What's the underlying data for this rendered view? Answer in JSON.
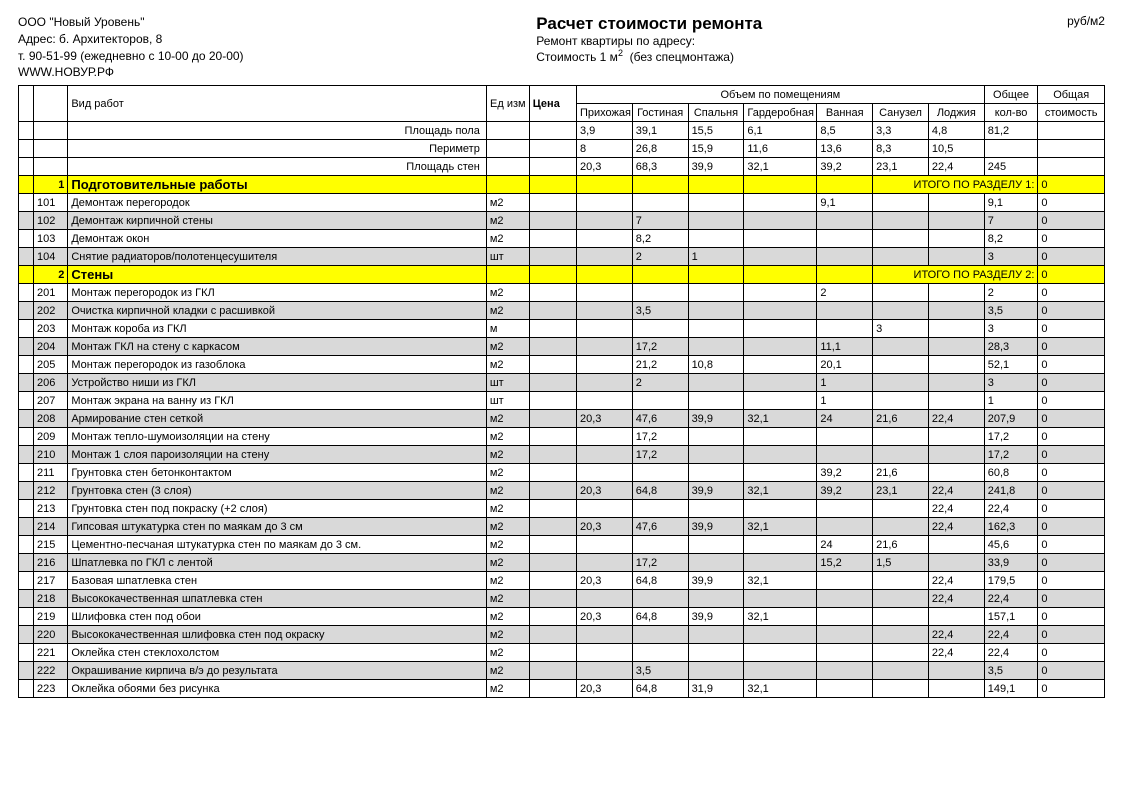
{
  "company": {
    "name": "ООО \"Новый Уровень\"",
    "address": "Адрес: б. Архитекторов, 8",
    "phone": "т. 90-51-99 (ежедневно с 10-00 до 20-00)",
    "site": "WWW.НОВУР.РФ"
  },
  "title": {
    "main": "Расчет стоимости ремонта",
    "sub": "Ремонт квартиры по адресу:",
    "cost_prefix": "Стоимость 1 м",
    "cost_suffix": "(без спецмонтажа)",
    "unit": "руб/м2"
  },
  "headers": {
    "work_type": "Вид работ",
    "unit": "Ед изм",
    "price": "Цена",
    "vol_head": "Объем по помещениям",
    "total_qty": "Общее кол-во",
    "total_cost": "Общая стоимость",
    "rooms": [
      "Прихожая",
      "Гостиная",
      "Спальня",
      "Гардеробная",
      "Ванная",
      "Санузел",
      "Лоджия"
    ]
  },
  "pre_rows": [
    {
      "label": "Площадь пола",
      "vals": [
        "3,9",
        "39,1",
        "15,5",
        "6,1",
        "8,5",
        "3,3",
        "4,8"
      ],
      "total": "81,2"
    },
    {
      "label": "Периметр",
      "vals": [
        "8",
        "26,8",
        "15,9",
        "11,6",
        "13,6",
        "8,3",
        "10,5"
      ],
      "total": ""
    },
    {
      "label": "Площадь стен",
      "vals": [
        "20,3",
        "68,3",
        "39,9",
        "32,1",
        "39,2",
        "23,1",
        "22,4"
      ],
      "total": "245"
    }
  ],
  "sections": [
    {
      "num": "1",
      "title": "Подготовительные работы",
      "sum_label": "ИТОГО ПО РАЗДЕЛУ 1:",
      "sum": "0"
    },
    {
      "num": "2",
      "title": "Стены",
      "sum_label": "ИТОГО ПО РАЗДЕЛУ 2:",
      "sum": "0"
    }
  ],
  "rows1": [
    {
      "n": "101",
      "name": "Демонтаж перегородок",
      "u": "м2",
      "v": [
        "",
        "",
        "",
        "",
        "9,1",
        "",
        ""
      ],
      "t": "9,1",
      "c": "0",
      "g": false
    },
    {
      "n": "102",
      "name": "Демонтаж кирпичной стены",
      "u": "м2",
      "v": [
        "",
        "7",
        "",
        "",
        "",
        "",
        ""
      ],
      "t": "7",
      "c": "0",
      "g": true
    },
    {
      "n": "103",
      "name": "Демонтаж окон",
      "u": "м2",
      "v": [
        "",
        "8,2",
        "",
        "",
        "",
        "",
        ""
      ],
      "t": "8,2",
      "c": "0",
      "g": false
    },
    {
      "n": "104",
      "name": "Снятие радиаторов/полотенцесушителя",
      "u": "шт",
      "v": [
        "",
        "2",
        "1",
        "",
        "",
        "",
        ""
      ],
      "t": "3",
      "c": "0",
      "g": true
    }
  ],
  "rows2": [
    {
      "n": "201",
      "name": "Монтаж перегородок из ГКЛ",
      "u": "м2",
      "v": [
        "",
        "",
        "",
        "",
        "2",
        "",
        ""
      ],
      "t": "2",
      "c": "0",
      "g": false
    },
    {
      "n": "202",
      "name": "Очистка кирпичной кладки с расшивкой",
      "u": "м2",
      "v": [
        "",
        "3,5",
        "",
        "",
        "",
        "",
        ""
      ],
      "t": "3,5",
      "c": "0",
      "g": true
    },
    {
      "n": "203",
      "name": "Монтаж короба из ГКЛ",
      "u": "м",
      "v": [
        "",
        "",
        "",
        "",
        "",
        "3",
        ""
      ],
      "t": "3",
      "c": "0",
      "g": false
    },
    {
      "n": "204",
      "name": "Монтаж ГКЛ на стену с каркасом",
      "u": "м2",
      "v": [
        "",
        "17,2",
        "",
        "",
        "11,1",
        "",
        ""
      ],
      "t": "28,3",
      "c": "0",
      "g": true
    },
    {
      "n": "205",
      "name": "Монтаж перегородок из газоблока",
      "u": "м2",
      "v": [
        "",
        "21,2",
        "10,8",
        "",
        "20,1",
        "",
        ""
      ],
      "t": "52,1",
      "c": "0",
      "g": false
    },
    {
      "n": "206",
      "name": "Устройство ниши из ГКЛ",
      "u": "шт",
      "v": [
        "",
        "2",
        "",
        "",
        "1",
        "",
        ""
      ],
      "t": "3",
      "c": "0",
      "g": true
    },
    {
      "n": "207",
      "name": "Монтаж экрана на ванну из ГКЛ",
      "u": "шт",
      "v": [
        "",
        "",
        "",
        "",
        "1",
        "",
        ""
      ],
      "t": "1",
      "c": "0",
      "g": false
    },
    {
      "n": "208",
      "name": "Армирование стен сеткой",
      "u": "м2",
      "v": [
        "20,3",
        "47,6",
        "39,9",
        "32,1",
        "24",
        "21,6",
        "22,4"
      ],
      "t": "207,9",
      "c": "0",
      "g": true
    },
    {
      "n": "209",
      "name": "Монтаж тепло-шумоизоляции на стену",
      "u": "м2",
      "v": [
        "",
        "17,2",
        "",
        "",
        "",
        "",
        ""
      ],
      "t": "17,2",
      "c": "0",
      "g": false
    },
    {
      "n": "210",
      "name": "Монтаж 1 слоя пароизоляции на стену",
      "u": "м2",
      "v": [
        "",
        "17,2",
        "",
        "",
        "",
        "",
        ""
      ],
      "t": "17,2",
      "c": "0",
      "g": true
    },
    {
      "n": "211",
      "name": "Грунтовка стен бетонконтактом",
      "u": "м2",
      "v": [
        "",
        "",
        "",
        "",
        "39,2",
        "21,6",
        ""
      ],
      "t": "60,8",
      "c": "0",
      "g": false
    },
    {
      "n": "212",
      "name": "Грунтовка стен (3 слоя)",
      "u": "м2",
      "v": [
        "20,3",
        "64,8",
        "39,9",
        "32,1",
        "39,2",
        "23,1",
        "22,4"
      ],
      "t": "241,8",
      "c": "0",
      "g": true
    },
    {
      "n": "213",
      "name": "Грунтовка стен под покраску (+2 слоя)",
      "u": "м2",
      "v": [
        "",
        "",
        "",
        "",
        "",
        "",
        "22,4"
      ],
      "t": "22,4",
      "c": "0",
      "g": false
    },
    {
      "n": "214",
      "name": "Гипсовая штукатурка стен по маякам до 3 см",
      "u": "м2",
      "v": [
        "20,3",
        "47,6",
        "39,9",
        "32,1",
        "",
        "",
        "22,4"
      ],
      "t": "162,3",
      "c": "0",
      "g": true
    },
    {
      "n": "215",
      "name": "Цементно-песчаная штукатурка стен по маякам до 3 см.",
      "u": "м2",
      "v": [
        "",
        "",
        "",
        "",
        "24",
        "21,6",
        ""
      ],
      "t": "45,6",
      "c": "0",
      "g": false
    },
    {
      "n": "216",
      "name": "Шпатлевка по ГКЛ с лентой",
      "u": "м2",
      "v": [
        "",
        "17,2",
        "",
        "",
        "15,2",
        "1,5",
        ""
      ],
      "t": "33,9",
      "c": "0",
      "g": true
    },
    {
      "n": "217",
      "name": "Базовая шпатлевка стен",
      "u": "м2",
      "v": [
        "20,3",
        "64,8",
        "39,9",
        "32,1",
        "",
        "",
        "22,4"
      ],
      "t": "179,5",
      "c": "0",
      "g": false
    },
    {
      "n": "218",
      "name": "Высококачественная шпатлевка стен",
      "u": "м2",
      "v": [
        "",
        "",
        "",
        "",
        "",
        "",
        "22,4"
      ],
      "t": "22,4",
      "c": "0",
      "g": true
    },
    {
      "n": "219",
      "name": "Шлифовка стен под обои",
      "u": "м2",
      "v": [
        "20,3",
        "64,8",
        "39,9",
        "32,1",
        "",
        "",
        ""
      ],
      "t": "157,1",
      "c": "0",
      "g": false
    },
    {
      "n": "220",
      "name": "Высококачественная шлифовка стен под окраску",
      "u": "м2",
      "v": [
        "",
        "",
        "",
        "",
        "",
        "",
        "22,4"
      ],
      "t": "22,4",
      "c": "0",
      "g": true
    },
    {
      "n": "221",
      "name": "Оклейка стен стеклохолстом",
      "u": "м2",
      "v": [
        "",
        "",
        "",
        "",
        "",
        "",
        "22,4"
      ],
      "t": "22,4",
      "c": "0",
      "g": false
    },
    {
      "n": "222",
      "name": "Окрашивание кирпича в/э до результата",
      "u": "м2",
      "v": [
        "",
        "3,5",
        "",
        "",
        "",
        "",
        ""
      ],
      "t": "3,5",
      "c": "0",
      "g": true
    },
    {
      "n": "223",
      "name": "Оклейка обоями без рисунка",
      "u": "м2",
      "v": [
        "20,3",
        "64,8",
        "31,9",
        "32,1",
        "",
        "",
        ""
      ],
      "t": "149,1",
      "c": "0",
      "g": false
    }
  ],
  "colors": {
    "yellow": "#ffff00",
    "gray": "#d9d9d9"
  }
}
